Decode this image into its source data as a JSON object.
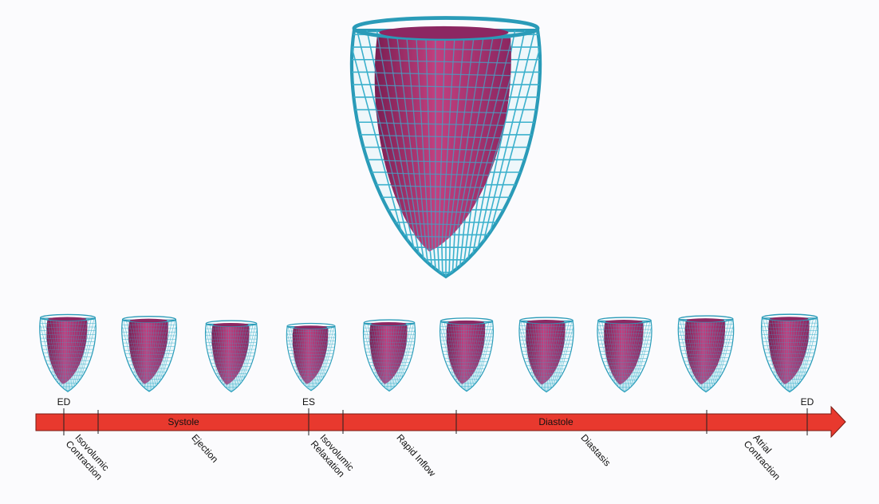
{
  "timeline": {
    "markers": [
      "ED",
      "ES",
      "ED"
    ],
    "phases": [
      "Systole",
      "Diastole"
    ],
    "intervals": [
      [
        "Isovolumic",
        "Contraction"
      ],
      [
        "Ejection"
      ],
      [
        "Isovolumic",
        "Relaxation"
      ],
      [
        "Rapid Inflow"
      ],
      [
        "Diastasis"
      ],
      [
        "Atrial",
        "Contraction"
      ]
    ]
  }
}
